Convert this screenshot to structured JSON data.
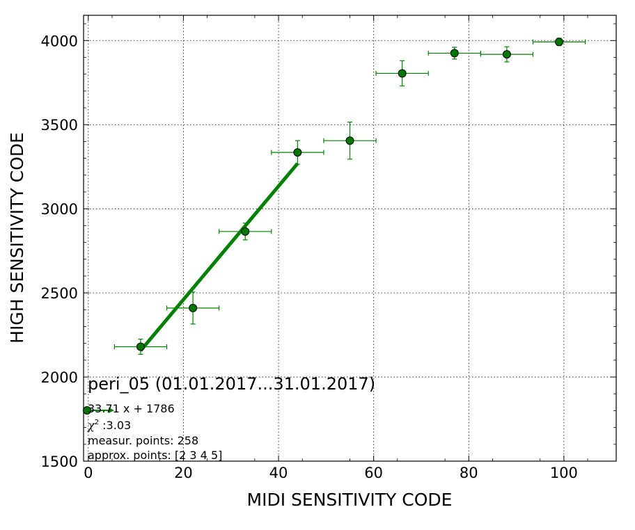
{
  "chart_data": {
    "type": "scatter",
    "title": "peri_05 (01.01.2017...31.01.2017)",
    "xlabel": "MIDI SENSITIVITY CODE",
    "ylabel": "HIGH SENSITIVITY CODE",
    "xlim": [
      -1,
      111
    ],
    "ylim": [
      1500,
      4150
    ],
    "xticks": [
      0,
      20,
      40,
      60,
      80,
      100
    ],
    "yticks": [
      1500,
      2000,
      2500,
      3000,
      3500,
      4000
    ],
    "grid": true,
    "series_color": "#008000",
    "marker_fill": "#007700",
    "points": [
      {
        "x": 11,
        "y": 2180,
        "xerr": 5.5,
        "yerr": 45
      },
      {
        "x": 22,
        "y": 2410,
        "xerr": 5.5,
        "yerr": 95
      },
      {
        "x": 33,
        "y": 2865,
        "xerr": 5.5,
        "yerr": 50
      },
      {
        "x": 44,
        "y": 3335,
        "xerr": 5.5,
        "yerr": 70
      },
      {
        "x": 55,
        "y": 3405,
        "xerr": 5.5,
        "yerr": 110
      },
      {
        "x": 66,
        "y": 3805,
        "xerr": 5.5,
        "yerr": 75
      },
      {
        "x": 77,
        "y": 3925,
        "xerr": 5.5,
        "yerr": 35
      },
      {
        "x": 88,
        "y": 3918,
        "xerr": 5.5,
        "yerr": 45
      },
      {
        "x": 99,
        "y": 3992,
        "xerr": 5.5,
        "yerr": 22
      }
    ],
    "fit": {
      "slope": 33.71,
      "intercept": 1786,
      "x_range": [
        11,
        44
      ]
    },
    "legend": {
      "fit_label": "33.71 x + 1786",
      "chi2_symbol": "χ",
      "chi2_exp": "2",
      "chi2_value": " :3.03",
      "measur_label": "measur. points: 258",
      "approx_label": "approx. points: [2 3 4 5]"
    }
  }
}
